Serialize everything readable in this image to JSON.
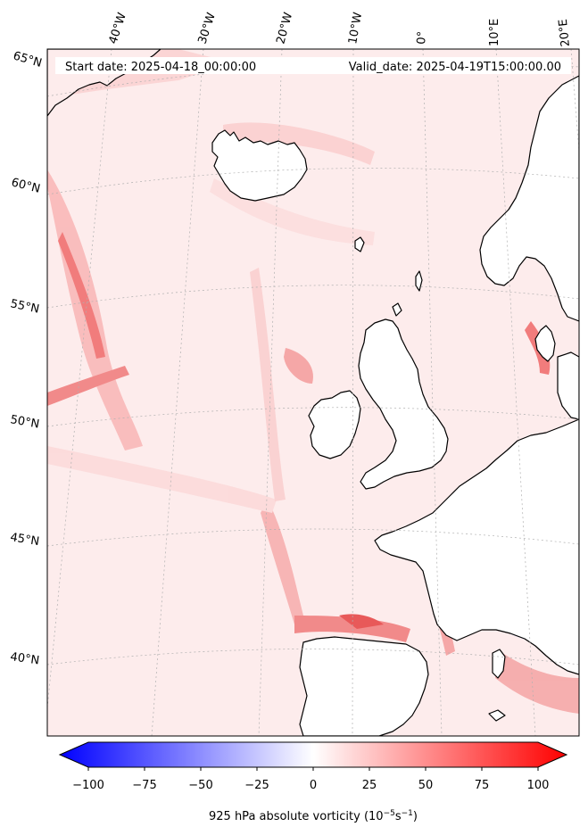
{
  "header": {
    "start_date": "Start date: 2025-04-18_00:00:00",
    "valid_date": "Valid_date: 2025-04-19T15:00:00.00"
  },
  "longitude_labels": [
    "40°W",
    "30°W",
    "20°W",
    "10°W",
    "0°",
    "10°E",
    "20°E"
  ],
  "latitude_labels": [
    "65°N",
    "60°N",
    "55°N",
    "50°N",
    "45°N",
    "40°N"
  ],
  "colorbar": {
    "ticks": [
      "−100",
      "−75",
      "−50",
      "−25",
      "0",
      "25",
      "50",
      "75",
      "100"
    ],
    "min": -100,
    "max": 100,
    "label_main": "925 hPa absolute vorticity (10",
    "label_exp1": "−5",
    "label_mid": "s",
    "label_exp2": "−1",
    "label_end": ")",
    "colors": {
      "negative": "#0000ff",
      "zero": "#ffffff",
      "positive": "#ff0000"
    }
  },
  "colors": {
    "background_fill": "#fdecec",
    "land_fill": "#ffffff",
    "coastline": "#000000",
    "gridline": "#b0b0b0"
  }
}
